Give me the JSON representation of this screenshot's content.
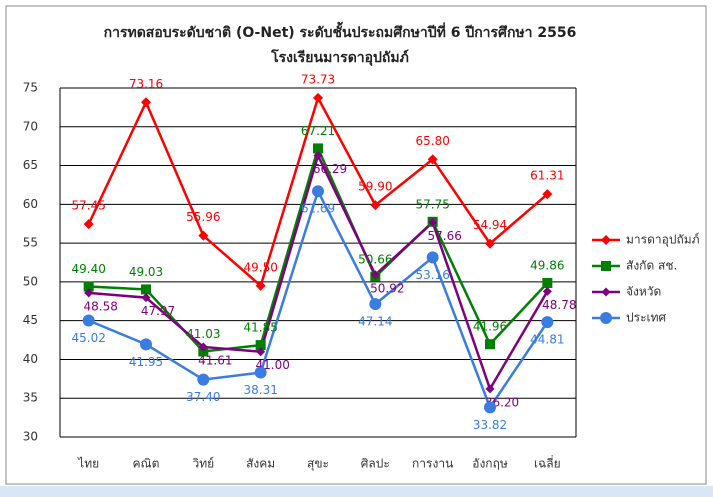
{
  "chart_data": {
    "type": "line",
    "title": "การทดสอบระดับชาติ (O-Net) ระดับชั้นประถมศึกษาปีที่ 6 ปีการศึกษา 2556",
    "subtitle": "โรงเรียนมารดาอุปถัมภ์",
    "categories": [
      "ไทย",
      "คณิต",
      "วิทย์",
      "สังคม",
      "สุขะ",
      "ศิลปะ",
      "การงาน",
      "อังกฤษ",
      "เฉลี่ย"
    ],
    "ylim": [
      30,
      75
    ],
    "yticks": [
      30,
      35,
      40,
      45,
      50,
      55,
      60,
      65,
      70,
      75
    ],
    "grid": true,
    "legend": "right",
    "series": [
      {
        "name": "มารดาอุปถัมภ์",
        "color": "#ff0000",
        "marker": "diamond",
        "values": [
          57.45,
          73.16,
          55.96,
          49.5,
          73.73,
          59.9,
          65.8,
          54.94,
          61.31
        ],
        "value_labels": [
          "57.45",
          "73.16",
          "55.96",
          "49.50",
          "73.73",
          "59.90",
          "65.80",
          "54.94",
          "61.31"
        ]
      },
      {
        "name": "สังกัด สช.",
        "color": "#008000",
        "marker": "square",
        "values": [
          49.4,
          49.03,
          41.03,
          41.85,
          67.21,
          50.66,
          57.75,
          41.96,
          49.86
        ],
        "value_labels": [
          "49.40",
          "49.03",
          "41.03",
          "41.85",
          "67.21",
          "50.66",
          "57.75",
          "41.96",
          "49.86"
        ]
      },
      {
        "name": "จังหวัด",
        "color": "#7f007f",
        "marker": "diamond",
        "values": [
          48.58,
          47.97,
          41.61,
          41.0,
          66.29,
          50.92,
          57.66,
          36.2,
          48.78
        ],
        "value_labels": [
          "48.58",
          "47.97",
          "41.61",
          "41.00",
          "66.29",
          "50.92",
          "57.66",
          "36.20",
          "48.78"
        ]
      },
      {
        "name": "ประเทศ",
        "color": "#3a7de0",
        "marker": "circle",
        "values": [
          45.02,
          41.95,
          37.4,
          38.31,
          61.69,
          47.14,
          53.16,
          33.82,
          44.81
        ],
        "value_labels": [
          "45.02",
          "41.95",
          "37.40",
          "38.31",
          "61.69",
          "47.14",
          "53.16",
          "33.82",
          "44.81"
        ]
      }
    ]
  }
}
